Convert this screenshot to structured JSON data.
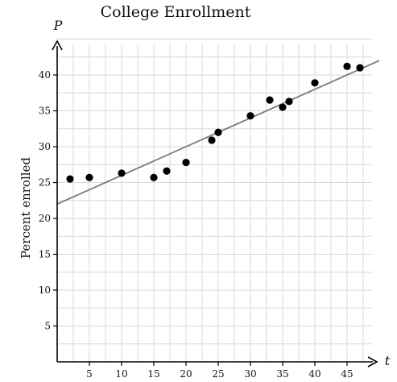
{
  "chart_data": {
    "type": "scatter",
    "title": "College Enrollment",
    "x_var": "t",
    "y_var": "P",
    "xlabel": "",
    "ylabel": "Percent enrolled",
    "xlim": [
      0,
      50
    ],
    "ylim": [
      0,
      45
    ],
    "x_ticks": [
      5,
      10,
      15,
      20,
      25,
      30,
      35,
      40,
      45
    ],
    "y_ticks": [
      5,
      10,
      15,
      20,
      25,
      30,
      35,
      40
    ],
    "grid": true,
    "points": [
      {
        "x": 2,
        "y": 25.5
      },
      {
        "x": 5,
        "y": 25.7
      },
      {
        "x": 10,
        "y": 26.3
      },
      {
        "x": 15,
        "y": 25.7
      },
      {
        "x": 17,
        "y": 26.6
      },
      {
        "x": 20,
        "y": 27.8
      },
      {
        "x": 24,
        "y": 30.9
      },
      {
        "x": 25,
        "y": 32.0
      },
      {
        "x": 30,
        "y": 34.3
      },
      {
        "x": 33,
        "y": 36.5
      },
      {
        "x": 35,
        "y": 35.5
      },
      {
        "x": 36,
        "y": 36.3
      },
      {
        "x": 40,
        "y": 38.9
      },
      {
        "x": 45,
        "y": 41.2
      },
      {
        "x": 47,
        "y": 41.0
      }
    ],
    "trend_line": {
      "x0": 0,
      "y0": 22.0,
      "x1": 50,
      "y1": 42.0
    },
    "colors": {
      "points": "#000000",
      "trend_line": "#7a7a7a",
      "grid": "#d8d8d8",
      "axes": "#000000"
    }
  }
}
